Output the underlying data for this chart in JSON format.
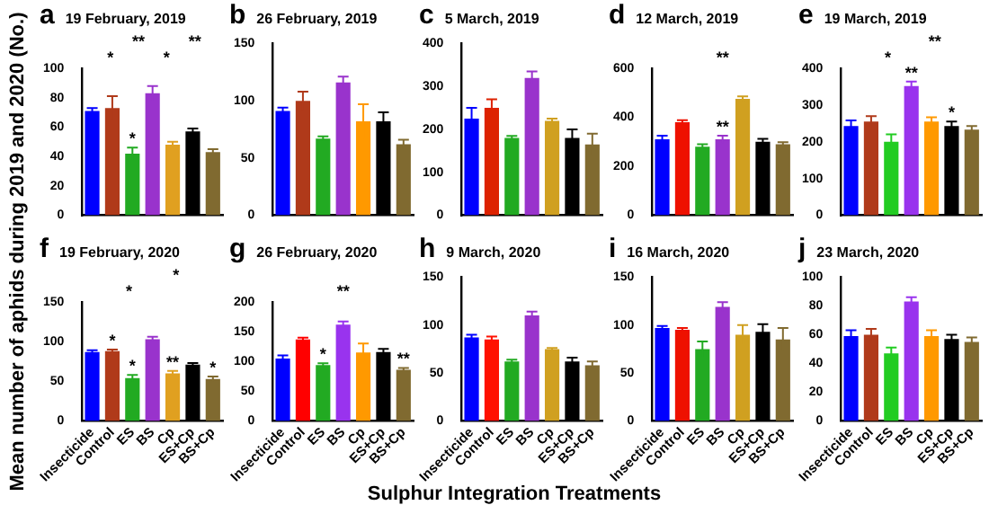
{
  "chart_data": [
    {
      "type": "bar",
      "title": "a",
      "subtitle": "19 February, 2019",
      "ylabel": "Mean number of aphids during 2019 and 2020 (No.)",
      "categories": [
        "Insecticide",
        "Control",
        "ES",
        "BS",
        "Cp",
        "ES+Cp",
        "BS+Cp"
      ],
      "values": [
        71,
        73,
        42,
        83,
        48,
        57,
        43
      ],
      "errors": [
        2,
        8,
        4,
        5,
        2,
        2,
        2
      ],
      "colors": [
        "#0000ff",
        "#b03a1a",
        "#22aa22",
        "#9933cc",
        "#e0a020",
        "#000000",
        "#806a30"
      ],
      "ylim": [
        0,
        100
      ],
      "yticks": [
        0,
        20,
        40,
        60,
        80,
        100
      ],
      "tick_labels": "y",
      "annotations": [
        "*",
        "**",
        "*",
        "**",
        {
          "text": "*",
          "x": "ES",
          "y": 46
        }
      ]
    },
    {
      "type": "bar",
      "title": "b",
      "subtitle": "26 February, 2019",
      "categories": [
        "Insecticide",
        "Control",
        "ES",
        "BS",
        "Cp",
        "ES+Cp",
        "BS+Cp"
      ],
      "values": [
        91,
        100,
        67,
        116,
        82,
        82,
        62
      ],
      "errors": [
        3,
        8,
        2,
        5,
        15,
        8,
        4
      ],
      "colors": [
        "#0000ff",
        "#b03a1a",
        "#22aa22",
        "#9933cc",
        "#ff9900",
        "#000000",
        "#806a30"
      ],
      "ylim": [
        0,
        150
      ],
      "yticks": [
        0,
        50,
        100,
        150
      ],
      "tick_labels": "y"
    },
    {
      "type": "bar",
      "title": "c",
      "subtitle": "5 March, 2019",
      "categories": [
        "Insecticide",
        "Control",
        "ES",
        "BS",
        "Cp",
        "ES+Cp",
        "BS+Cp"
      ],
      "values": [
        225,
        250,
        180,
        320,
        220,
        180,
        165
      ],
      "errors": [
        25,
        20,
        5,
        15,
        5,
        20,
        25
      ],
      "colors": [
        "#0000ff",
        "#dd2200",
        "#22aa22",
        "#9933cc",
        "#d0a020",
        "#000000",
        "#806a30"
      ],
      "ylim": [
        0,
        400
      ],
      "yticks": [
        0,
        100,
        200,
        300,
        400
      ],
      "tick_labels": "y"
    },
    {
      "type": "bar",
      "title": "d",
      "subtitle": "12 March, 2019",
      "categories": [
        "Insecticide",
        "Control",
        "ES",
        "BS",
        "Cp",
        "ES+Cp",
        "BS+Cp"
      ],
      "values": [
        310,
        380,
        280,
        310,
        475,
        300,
        290
      ],
      "errors": [
        15,
        8,
        10,
        15,
        10,
        12,
        8
      ],
      "colors": [
        "#0000ff",
        "#ee1100",
        "#22aa22",
        "#9933cc",
        "#d0a020",
        "#000000",
        "#806a30"
      ],
      "ylim": [
        0,
        600
      ],
      "yticks": [
        0,
        200,
        400,
        600
      ],
      "tick_labels": "y",
      "annotations": [
        "**",
        {
          "text": "**",
          "x": "BS",
          "y": 325
        }
      ]
    },
    {
      "type": "bar",
      "title": "e",
      "subtitle": "19 March, 2019",
      "categories": [
        "Insecticide",
        "Control",
        "ES",
        "BS",
        "Cp",
        "ES+Cp",
        "BS+Cp"
      ],
      "values": [
        243,
        255,
        200,
        352,
        255,
        243,
        233
      ],
      "errors": [
        15,
        15,
        20,
        12,
        12,
        12,
        10
      ],
      "colors": [
        "#0000ff",
        "#b03a1a",
        "#22cc22",
        "#9933ee",
        "#ff9900",
        "#000000",
        "#806a30"
      ],
      "ylim": [
        0,
        400
      ],
      "yticks": [
        0,
        100,
        200,
        300,
        400
      ],
      "tick_labels": "y",
      "annotations": [
        "*",
        "**",
        {
          "text": "**",
          "x": "BS",
          "y": 364
        },
        {
          "text": "*",
          "x": "ES+Cp",
          "y": 255
        }
      ]
    },
    {
      "type": "bar",
      "title": "f",
      "subtitle": "19 February, 2020",
      "categories": [
        "Insecticide",
        "Control",
        "ES",
        "BS",
        "Cp",
        "ES+Cp",
        "BS+Cp"
      ],
      "values": [
        87,
        88,
        54,
        103,
        60,
        71,
        53
      ],
      "errors": [
        2,
        2,
        4,
        3,
        3,
        2,
        3
      ],
      "colors": [
        "#0000ff",
        "#b03a1a",
        "#22aa22",
        "#9933cc",
        "#e0a020",
        "#000000",
        "#806a30"
      ],
      "ylim": [
        0,
        150
      ],
      "yticks": [
        0,
        50,
        100,
        150
      ],
      "annotations": [
        "*",
        "*",
        {
          "text": "*",
          "x": "Control",
          "y": 90
        },
        {
          "text": "*",
          "x": "ES",
          "y": 58
        },
        {
          "text": "**",
          "x": "Cp",
          "y": 63
        },
        {
          "text": "*",
          "x": "BS+Cp",
          "y": 56
        }
      ]
    },
    {
      "type": "bar",
      "title": "g",
      "subtitle": "26 February, 2020",
      "categories": [
        "Insecticide",
        "Control",
        "ES",
        "BS",
        "Cp",
        "ES+Cp",
        "BS+Cp"
      ],
      "values": [
        105,
        137,
        94,
        162,
        115,
        116,
        86
      ],
      "errors": [
        5,
        3,
        3,
        5,
        15,
        5,
        3
      ],
      "colors": [
        "#0000ff",
        "#ff0000",
        "#22aa22",
        "#9933ee",
        "#ff9900",
        "#000000",
        "#806a30"
      ],
      "ylim": [
        0,
        200
      ],
      "yticks": [
        0,
        50,
        100,
        150,
        200
      ],
      "annotations": [
        "**",
        {
          "text": "*",
          "x": "ES",
          "y": 97
        },
        {
          "text": "**",
          "x": "BS+Cp",
          "y": 89
        }
      ]
    },
    {
      "type": "bar",
      "title": "h",
      "subtitle": "9 March, 2020",
      "xlabel": "Sulphur Integration Treatments",
      "categories": [
        "Insecticide",
        "Control",
        "ES",
        "BS",
        "Cp",
        "ES+Cp",
        "BS+Cp"
      ],
      "values": [
        87,
        85,
        62,
        110,
        75,
        62,
        58
      ],
      "errors": [
        3,
        3,
        2,
        4,
        1,
        4,
        4
      ],
      "colors": [
        "#0000ff",
        "#ff1100",
        "#22aa22",
        "#9933cc",
        "#d0a020",
        "#000000",
        "#806a30"
      ],
      "ylim": [
        0,
        150
      ],
      "yticks": [
        0,
        50,
        100,
        150
      ]
    },
    {
      "type": "bar",
      "title": "i",
      "subtitle": "16 March, 2020",
      "categories": [
        "Insecticide",
        "Control",
        "ES",
        "BS",
        "Cp",
        "ES+Cp",
        "BS+Cp"
      ],
      "values": [
        97,
        95,
        75,
        119,
        90,
        93,
        85
      ],
      "errors": [
        2,
        2,
        8,
        5,
        10,
        8,
        12
      ],
      "colors": [
        "#0000ff",
        "#ee1100",
        "#22aa22",
        "#9933cc",
        "#d0a020",
        "#000000",
        "#806a30"
      ],
      "ylim": [
        0,
        150
      ],
      "yticks": [
        0,
        50,
        100,
        150
      ]
    },
    {
      "type": "bar",
      "title": "j",
      "subtitle": "23 March, 2020",
      "categories": [
        "Insecticide",
        "Control",
        "ES",
        "BS",
        "Cp",
        "ES+Cp",
        "BS+Cp"
      ],
      "values": [
        59,
        60,
        47,
        83,
        59,
        57,
        55
      ],
      "errors": [
        4,
        4,
        4,
        3,
        4,
        3,
        3
      ],
      "colors": [
        "#0000ff",
        "#b03a1a",
        "#22cc22",
        "#9933ee",
        "#ff9900",
        "#000000",
        "#806a30"
      ],
      "ylim": [
        0,
        100
      ],
      "yticks": [
        0,
        20,
        40,
        60,
        80,
        100
      ]
    }
  ]
}
